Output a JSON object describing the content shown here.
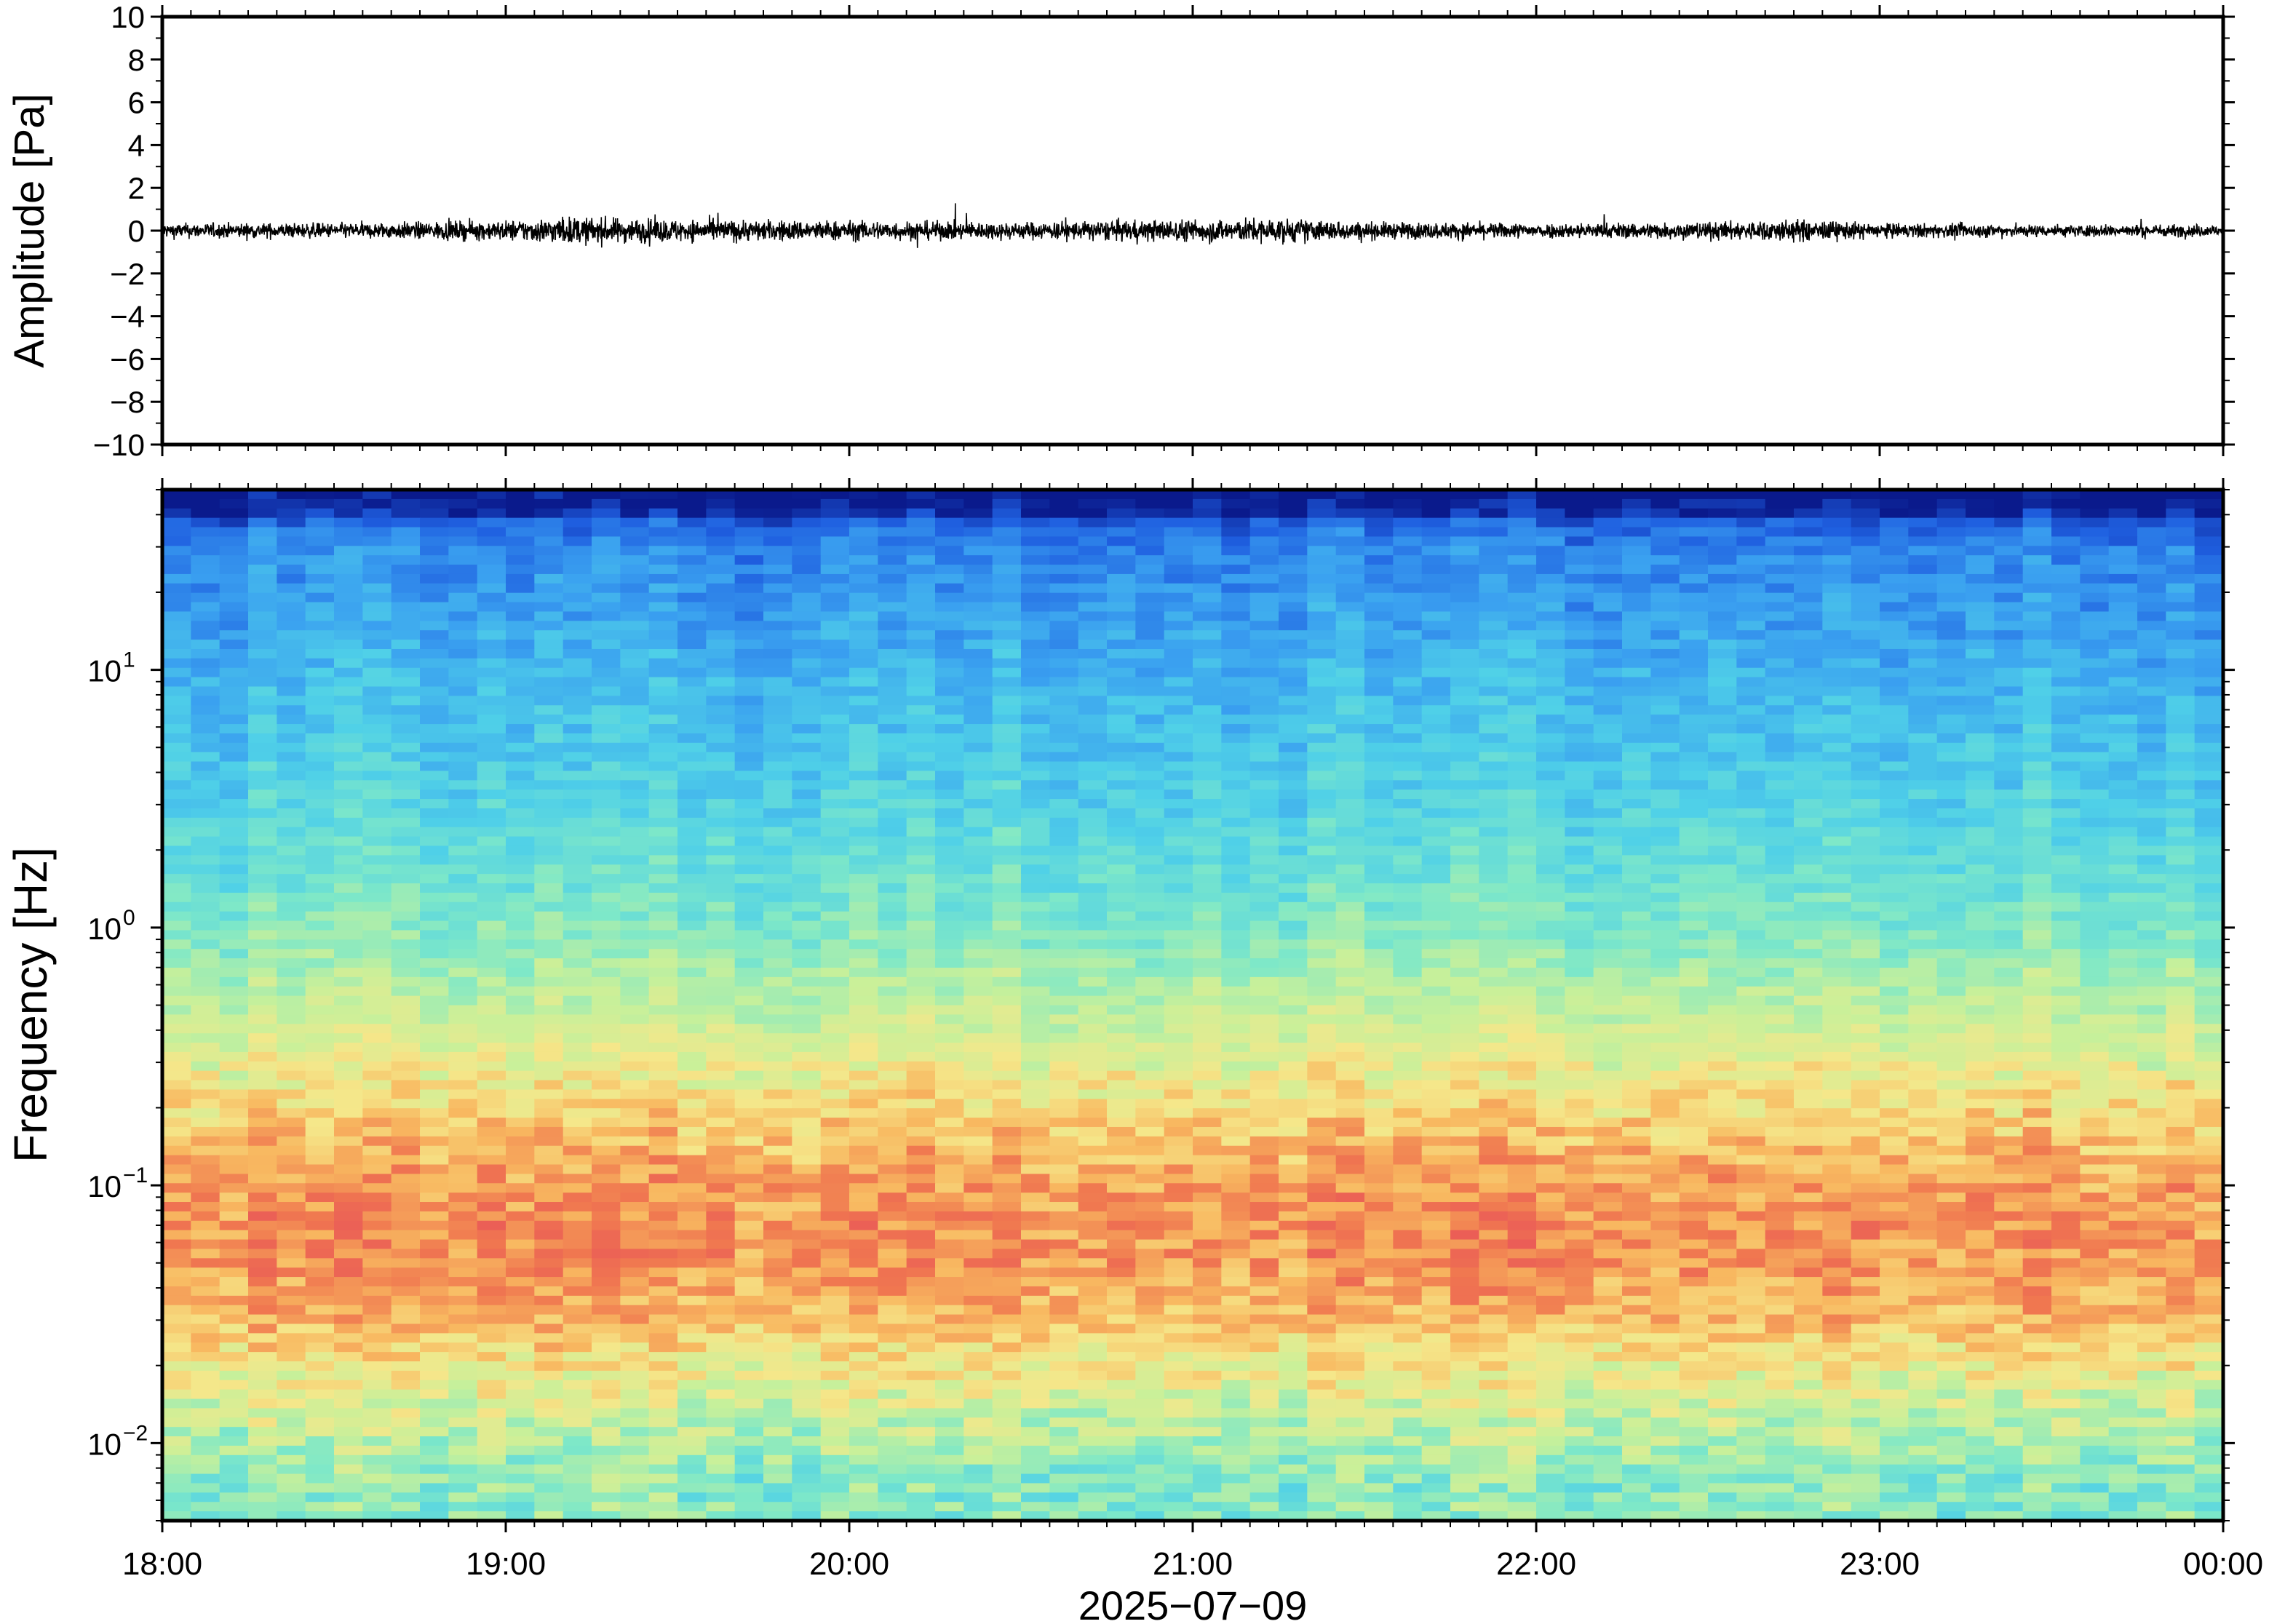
{
  "chart_data": [
    {
      "type": "line",
      "panel": "waveform",
      "title": "",
      "xlabel": "",
      "ylabel": "Amplitude [Pa]",
      "ylim": [
        -10,
        10
      ],
      "xlim": [
        "18:00",
        "00:00"
      ],
      "yticks": [
        10,
        8,
        6,
        4,
        2,
        0,
        -2,
        -4,
        -6,
        -8,
        -10
      ],
      "ytick_labels": [
        "10",
        "8",
        "6",
        "4",
        "2",
        "0",
        "−2",
        "−4",
        "−6",
        "−8",
        "−10"
      ],
      "series": [
        {
          "color": "#000000",
          "description": "noisy pressure trace centered on 0 Pa",
          "envelope_time_h": [
            18.0,
            18.5,
            19.0,
            19.17,
            19.5,
            20.0,
            20.5,
            21.0,
            21.25,
            21.5,
            22.0,
            22.5,
            22.75,
            23.0,
            23.5,
            24.0
          ],
          "envelope_abs_pa": [
            0.6,
            0.6,
            0.8,
            1.1,
            0.9,
            0.8,
            0.7,
            0.9,
            1.0,
            0.7,
            0.6,
            0.7,
            0.9,
            0.6,
            0.5,
            0.5
          ]
        }
      ]
    },
    {
      "type": "heatmap",
      "panel": "spectrogram",
      "title": "",
      "ylabel": "Frequency [Hz]",
      "xlabel": "2025−07−09",
      "yscale": "log",
      "ylim": [
        0.005,
        50
      ],
      "yticks": [
        {
          "value": 10,
          "base": "10",
          "exp": "1"
        },
        {
          "value": 1,
          "base": "10",
          "exp": "0"
        },
        {
          "value": 0.1,
          "base": "10",
          "exp": "−1"
        },
        {
          "value": 0.01,
          "base": "10",
          "exp": "−2"
        }
      ],
      "xticks": [
        "18:00",
        "19:00",
        "20:00",
        "21:00",
        "22:00",
        "23:00",
        "00:00"
      ],
      "colormap": "jet-like (low power blue, high power red)",
      "colormap_stops": [
        "#0a1a8c",
        "#1f5fe0",
        "#3aa0f0",
        "#4fd0e8",
        "#7ee8c8",
        "#c8f09a",
        "#f5e78a",
        "#f8b860",
        "#f07850",
        "#e8505a"
      ],
      "power_profile": {
        "freq_hz": [
          50,
          30,
          10,
          3,
          1,
          0.5,
          0.25,
          0.15,
          0.1,
          0.07,
          0.05,
          0.03,
          0.02,
          0.012,
          0.007
        ],
        "relative_level": [
          0.03,
          0.18,
          0.27,
          0.35,
          0.45,
          0.55,
          0.66,
          0.76,
          0.82,
          0.85,
          0.84,
          0.77,
          0.66,
          0.56,
          0.46
        ]
      }
    }
  ]
}
